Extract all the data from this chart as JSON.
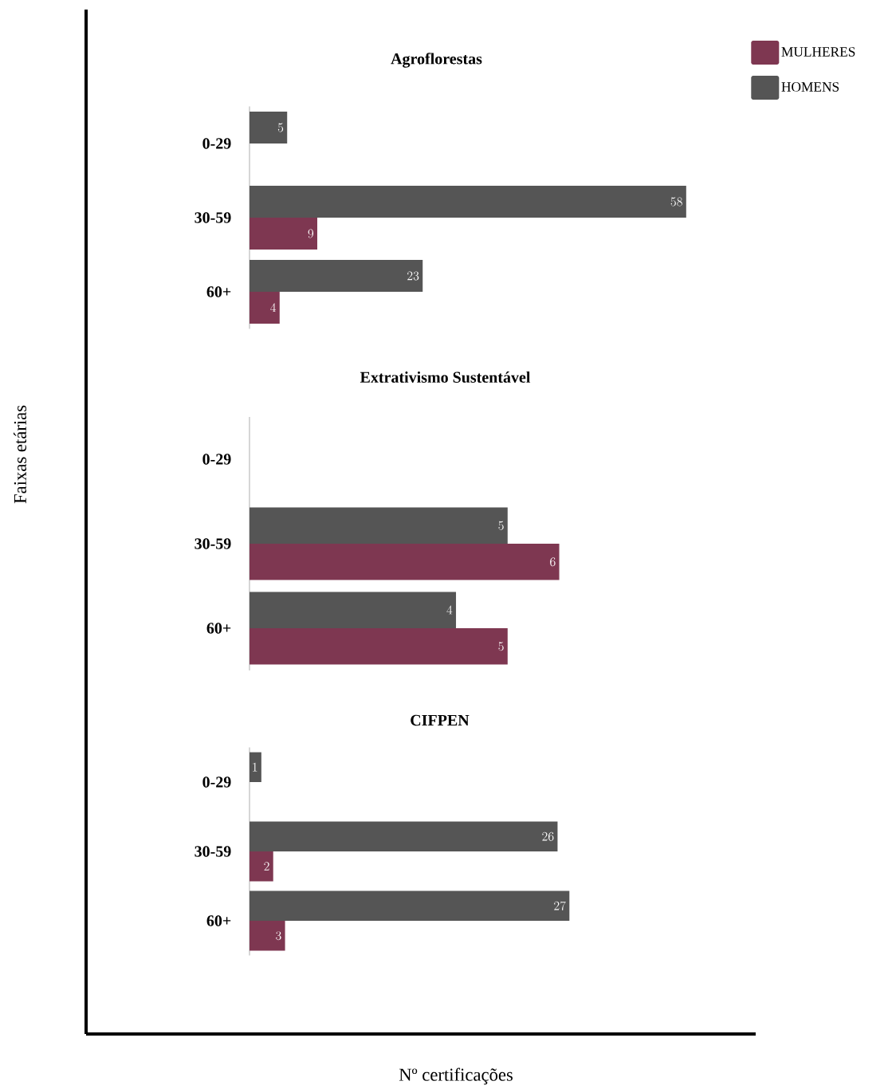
{
  "chart_data": [
    {
      "type": "bar",
      "orientation": "horizontal",
      "title": "Agroflorestas",
      "categories": [
        "0-29",
        "30-59",
        "60+"
      ],
      "data_labels": true,
      "legend": "top right",
      "series": [
        {
          "name": "MULHERES",
          "color": "#7e3751",
          "values": [
            null,
            9,
            4
          ]
        },
        {
          "name": "HOMENS",
          "color": "#555555",
          "values": [
            5,
            58,
            23
          ]
        }
      ]
    },
    {
      "type": "bar",
      "orientation": "horizontal",
      "title": "Extrativismo Sustentável",
      "ylabel": "Faixas etárias",
      "categories": [
        "0-29",
        "30-59",
        "60+"
      ],
      "data_labels": true,
      "series": [
        {
          "color": "#7e3751",
          "values": [
            null,
            6,
            5
          ]
        },
        {
          "color": "#555555",
          "values": [
            null,
            5,
            4
          ]
        }
      ]
    },
    {
      "type": "bar",
      "orientation": "horizontal",
      "title": "CIFPEN",
      "xlabel": "Nº certificações",
      "categories": [
        "0-29",
        "30-59",
        "60+"
      ],
      "data_labels": true,
      "series": [
        {
          "color": "#7e3751",
          "values": [
            null,
            2,
            3
          ]
        },
        {
          "color": "#555555",
          "values": [
            1,
            26,
            27
          ]
        }
      ]
    }
  ]
}
